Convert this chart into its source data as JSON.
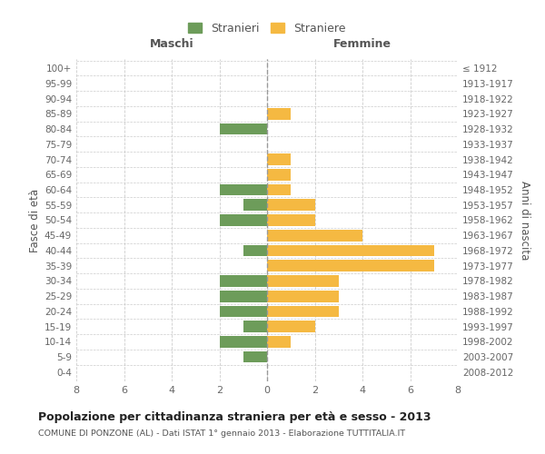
{
  "age_groups": [
    "0-4",
    "5-9",
    "10-14",
    "15-19",
    "20-24",
    "25-29",
    "30-34",
    "35-39",
    "40-44",
    "45-49",
    "50-54",
    "55-59",
    "60-64",
    "65-69",
    "70-74",
    "75-79",
    "80-84",
    "85-89",
    "90-94",
    "95-99",
    "100+"
  ],
  "birth_years": [
    "2008-2012",
    "2003-2007",
    "1998-2002",
    "1993-1997",
    "1988-1992",
    "1983-1987",
    "1978-1982",
    "1973-1977",
    "1968-1972",
    "1963-1967",
    "1958-1962",
    "1953-1957",
    "1948-1952",
    "1943-1947",
    "1938-1942",
    "1933-1937",
    "1928-1932",
    "1923-1927",
    "1918-1922",
    "1913-1917",
    "≤ 1912"
  ],
  "maschi": [
    0,
    1,
    2,
    1,
    2,
    2,
    2,
    0,
    1,
    0,
    2,
    1,
    2,
    0,
    0,
    0,
    2,
    0,
    0,
    0,
    0
  ],
  "femmine": [
    0,
    0,
    1,
    2,
    3,
    3,
    3,
    7,
    7,
    4,
    2,
    2,
    1,
    1,
    1,
    0,
    0,
    1,
    0,
    0,
    0
  ],
  "maschi_color": "#6d9c5a",
  "femmine_color": "#f5b942",
  "xlim": 8,
  "title": "Popolazione per cittadinanza straniera per età e sesso - 2013",
  "subtitle": "COMUNE DI PONZONE (AL) - Dati ISTAT 1° gennaio 2013 - Elaborazione TUTTITALIA.IT",
  "ylabel_left": "Fasce di età",
  "ylabel_right": "Anni di nascita",
  "legend_stranieri": "Stranieri",
  "legend_straniere": "Straniere",
  "col_maschi": "Maschi",
  "col_femmine": "Femmine",
  "bg_color": "#ffffff",
  "grid_color": "#cccccc",
  "bar_height": 0.75
}
